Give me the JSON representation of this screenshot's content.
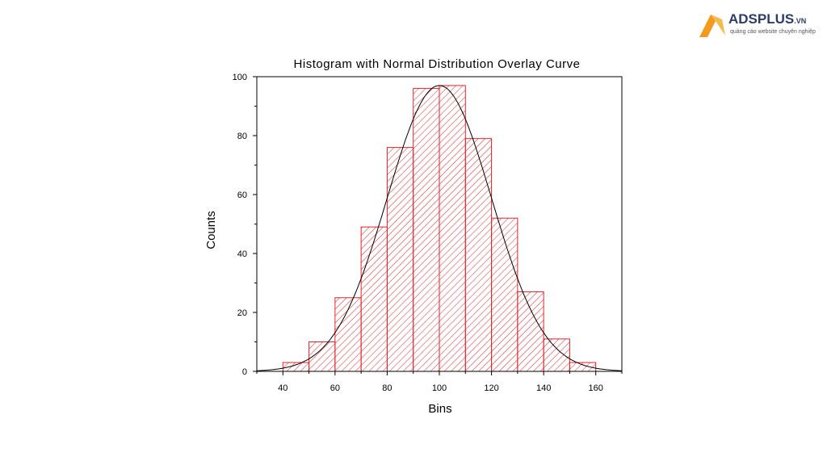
{
  "brand": {
    "name": "ADSPLUS",
    "tld": ".VN",
    "tagline": "quảng cáo website chuyên nghiệp",
    "colors": {
      "orange": "#f39a1e",
      "navy": "#2b3d6b"
    }
  },
  "chart_data": {
    "type": "bar",
    "title": "Histogram with Normal Distribution Overlay Curve",
    "xlabel": "Bins",
    "ylabel": "Counts",
    "xlim": [
      30,
      170
    ],
    "ylim": [
      0,
      100
    ],
    "xticks": [
      40,
      60,
      80,
      100,
      120,
      140,
      160
    ],
    "yticks": [
      0,
      20,
      40,
      60,
      80,
      100
    ],
    "bins": [
      {
        "start": 40,
        "end": 50,
        "count": 3
      },
      {
        "start": 50,
        "end": 60,
        "count": 10
      },
      {
        "start": 60,
        "end": 70,
        "count": 25
      },
      {
        "start": 70,
        "end": 80,
        "count": 49
      },
      {
        "start": 80,
        "end": 90,
        "count": 76
      },
      {
        "start": 90,
        "end": 100,
        "count": 96
      },
      {
        "start": 100,
        "end": 110,
        "count": 97
      },
      {
        "start": 110,
        "end": 120,
        "count": 79
      },
      {
        "start": 120,
        "end": 130,
        "count": 52
      },
      {
        "start": 130,
        "end": 140,
        "count": 27
      },
      {
        "start": 140,
        "end": 150,
        "count": 11
      },
      {
        "start": 150,
        "end": 160,
        "count": 3
      }
    ],
    "overlay_curve": {
      "type": "normal",
      "mean": 100,
      "sd": 20,
      "peak": 97
    },
    "bar_color": "#e8212a",
    "curve_color": "#000000",
    "bar_fill": "diagonal-hatch",
    "grid": false,
    "legend": "none"
  }
}
